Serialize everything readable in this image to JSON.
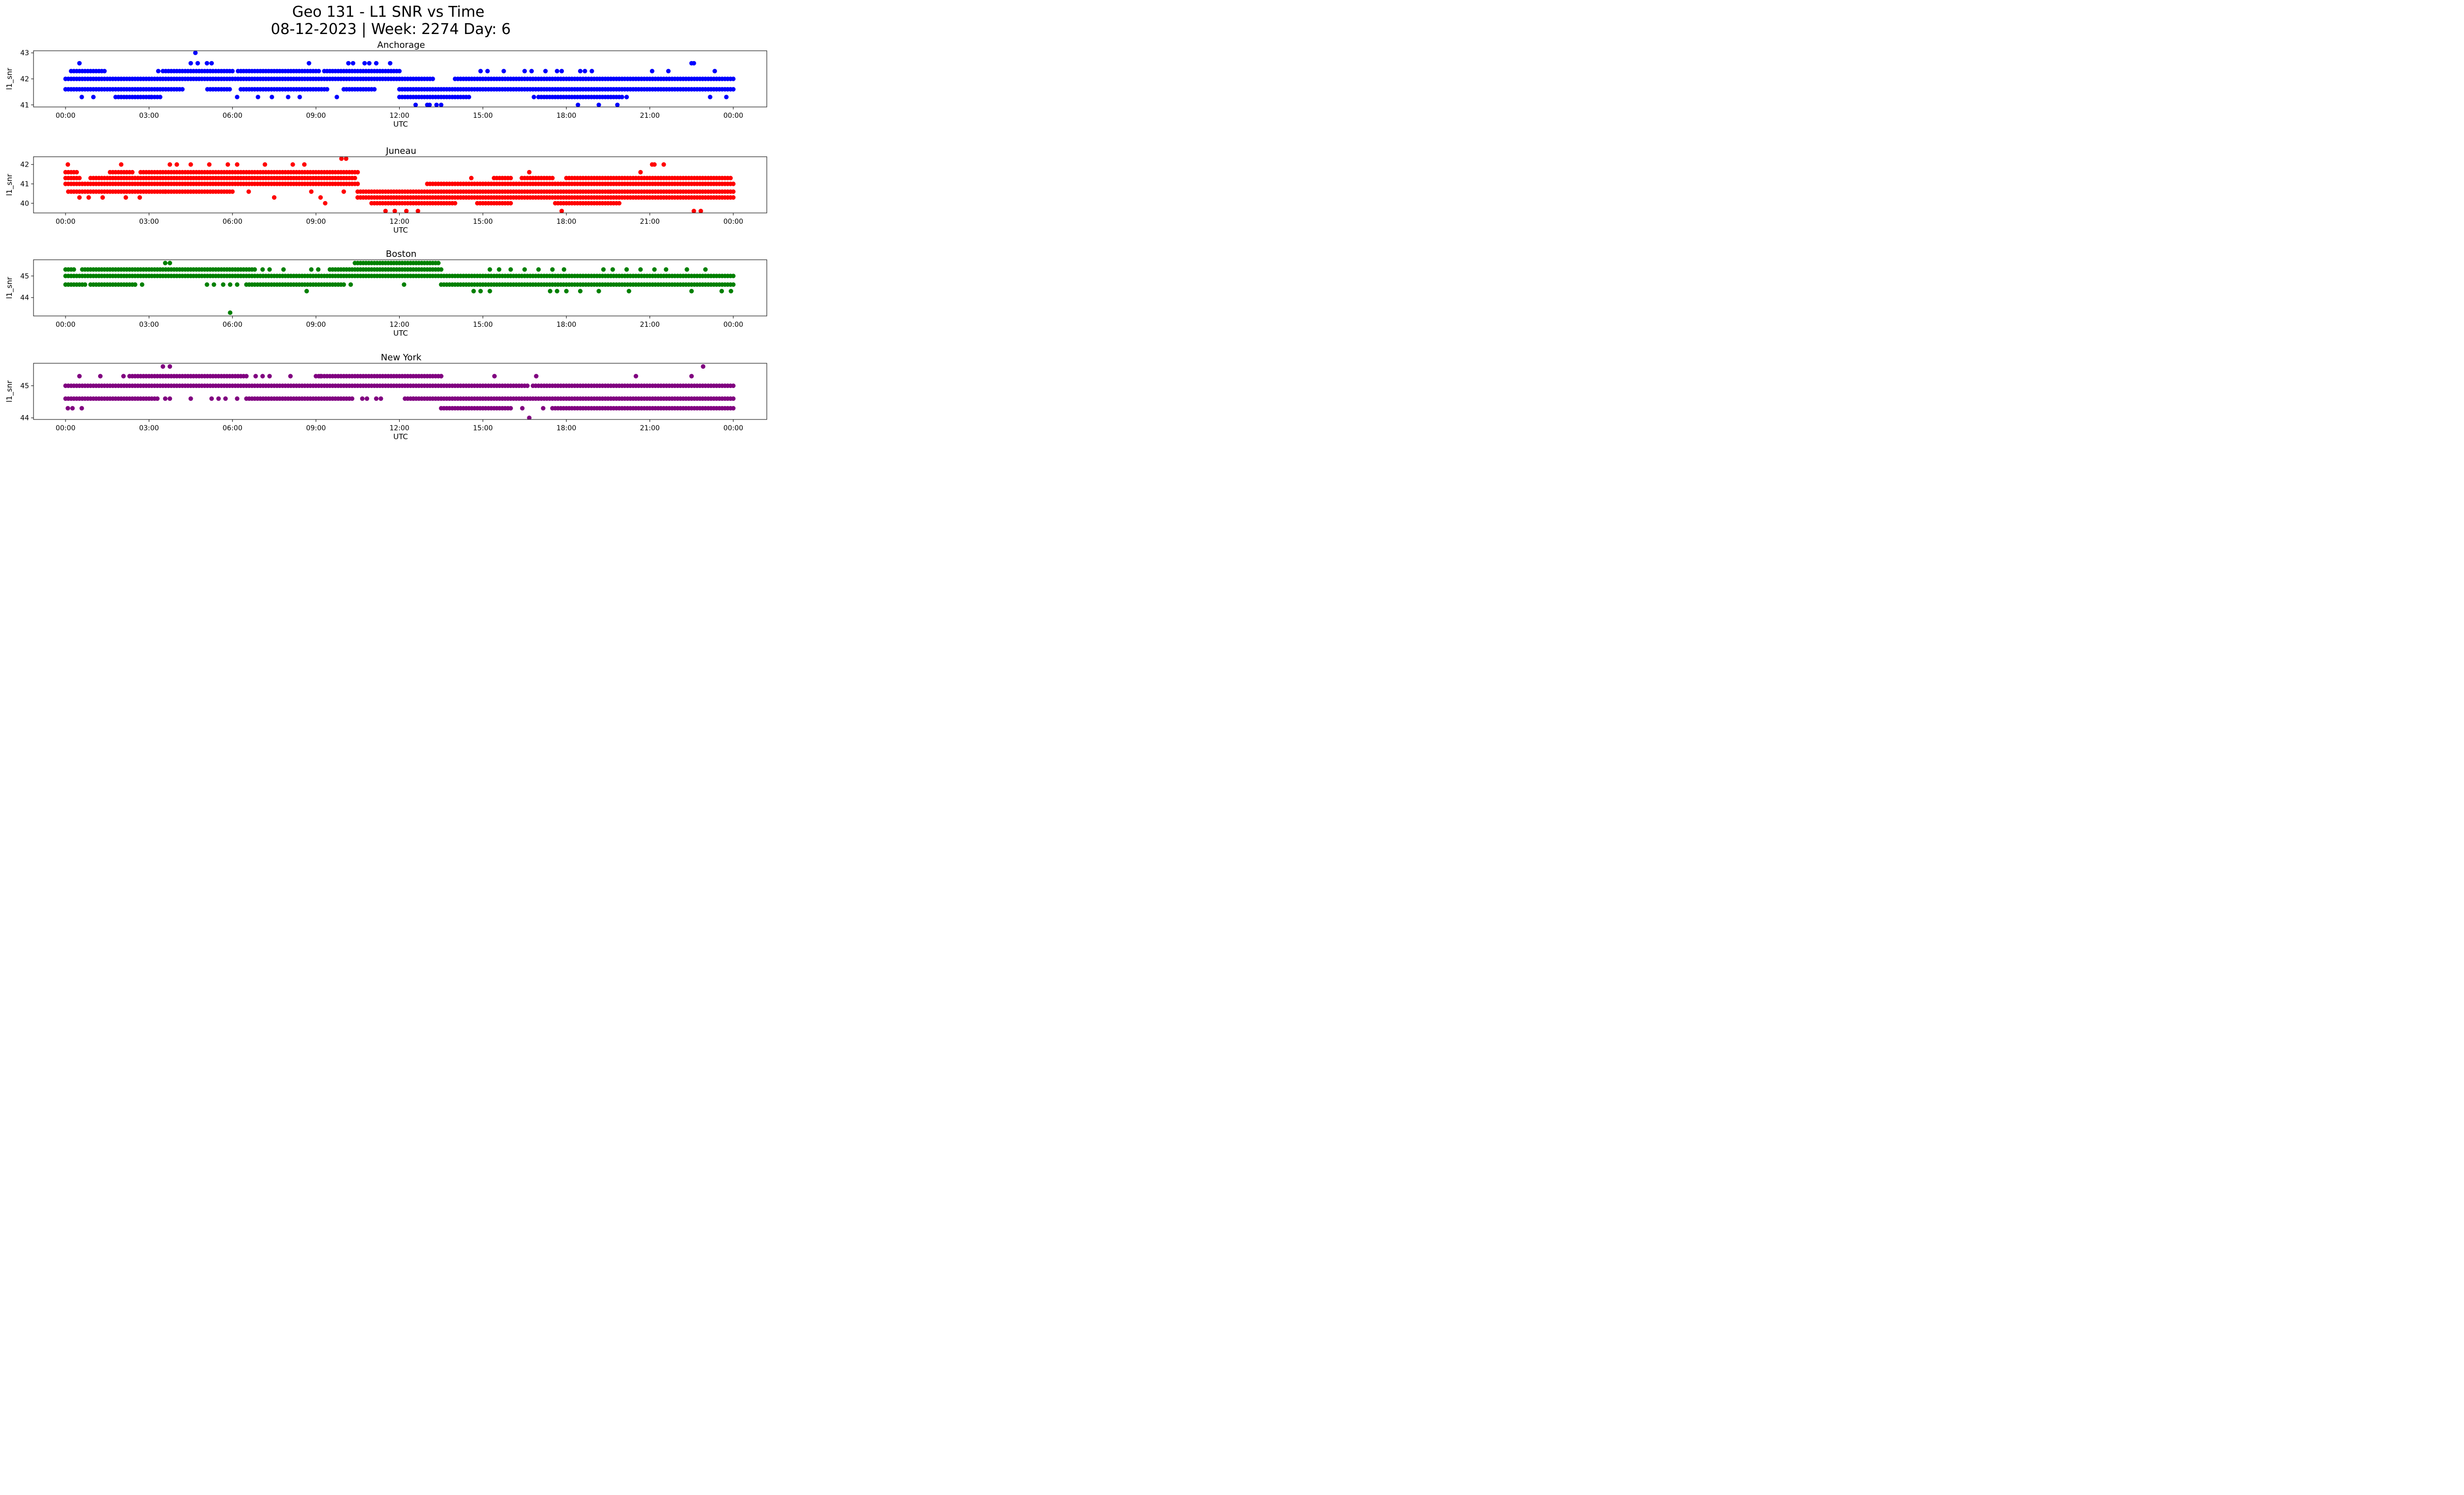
{
  "title_line1": "Geo 131 - L1 SNR vs Time",
  "title_line2": "08-12-2023 | Week: 2274 Day: 6",
  "chart_data": [
    {
      "type": "scatter",
      "title": "Anchorage",
      "xlabel": "UTC",
      "ylabel": "l1_snr",
      "color": "#0000ff",
      "xlim": [
        "00:00",
        "24:00"
      ],
      "x_ticks": [
        "00:00",
        "03:00",
        "06:00",
        "09:00",
        "12:00",
        "15:00",
        "18:00",
        "21:00",
        "00:00"
      ],
      "ylim": [
        40.92,
        43.08
      ],
      "y_ticks": [
        41,
        42,
        43
      ],
      "levels": [
        {
          "y": 42.0,
          "segments": [
            [
              0.0,
              12.0
            ],
            [
              12.1,
              13.2
            ],
            [
              14.0,
              24.0
            ]
          ]
        },
        {
          "y": 41.6,
          "segments": [
            [
              0.0,
              4.2
            ],
            [
              5.1,
              5.9
            ],
            [
              6.3,
              9.4
            ],
            [
              10.0,
              11.1
            ],
            [
              12.0,
              24.0
            ]
          ]
        },
        {
          "y": 42.3,
          "segments": [
            [
              0.2,
              1.4
            ],
            [
              3.5,
              6.0
            ],
            [
              6.2,
              9.1
            ],
            [
              9.3,
              12.0
            ]
          ]
        },
        {
          "y": 41.3,
          "segments": [
            [
              1.8,
              3.4
            ],
            [
              12.0,
              14.5
            ],
            [
              17.0,
              20.0
            ]
          ]
        }
      ],
      "points": [
        [
          "00:30",
          42.6
        ],
        [
          "00:35",
          41.3
        ],
        [
          "01:00",
          41.3
        ],
        [
          "03:05",
          41.3
        ],
        [
          "03:20",
          42.3
        ],
        [
          "04:40",
          43.0
        ],
        [
          "04:30",
          42.6
        ],
        [
          "04:45",
          42.6
        ],
        [
          "05:05",
          42.6
        ],
        [
          "05:15",
          42.6
        ],
        [
          "06:10",
          41.3
        ],
        [
          "06:55",
          41.3
        ],
        [
          "07:25",
          41.3
        ],
        [
          "08:00",
          41.3
        ],
        [
          "08:25",
          41.3
        ],
        [
          "08:45",
          42.6
        ],
        [
          "09:45",
          41.3
        ],
        [
          "10:10",
          42.6
        ],
        [
          "10:20",
          42.6
        ],
        [
          "10:45",
          42.6
        ],
        [
          "10:55",
          42.6
        ],
        [
          "11:10",
          42.6
        ],
        [
          "11:40",
          42.6
        ],
        [
          "12:35",
          41.0
        ],
        [
          "13:00",
          41.0
        ],
        [
          "13:05",
          41.0
        ],
        [
          "13:20",
          41.0
        ],
        [
          "13:30",
          41.0
        ],
        [
          "14:55",
          42.3
        ],
        [
          "15:10",
          42.3
        ],
        [
          "15:45",
          42.3
        ],
        [
          "16:30",
          42.3
        ],
        [
          "16:45",
          42.3
        ],
        [
          "16:50",
          41.3
        ],
        [
          "17:15",
          42.3
        ],
        [
          "17:40",
          42.3
        ],
        [
          "17:50",
          42.3
        ],
        [
          "18:30",
          42.3
        ],
        [
          "18:40",
          42.3
        ],
        [
          "18:25",
          41.0
        ],
        [
          "19:10",
          41.0
        ],
        [
          "19:50",
          41.0
        ],
        [
          "18:55",
          42.3
        ],
        [
          "20:10",
          41.3
        ],
        [
          "21:05",
          42.3
        ],
        [
          "21:40",
          42.3
        ],
        [
          "22:30",
          42.6
        ],
        [
          "22:35",
          42.6
        ],
        [
          "23:10",
          41.3
        ],
        [
          "23:20",
          42.3
        ],
        [
          "23:45",
          41.3
        ]
      ]
    },
    {
      "type": "scatter",
      "title": "Juneau",
      "xlabel": "UTC",
      "ylabel": "l1_snr",
      "color": "#ff0000",
      "xlim": [
        "00:00",
        "24:00"
      ],
      "x_ticks": [
        "00:00",
        "03:00",
        "06:00",
        "09:00",
        "12:00",
        "15:00",
        "18:00",
        "21:00",
        "00:00"
      ],
      "ylim": [
        39.5,
        42.4
      ],
      "y_ticks": [
        40,
        41,
        42
      ],
      "levels": [
        {
          "y": 41.0,
          "segments": [
            [
              0.0,
              10.5
            ],
            [
              13.0,
              24.0
            ]
          ]
        },
        {
          "y": 41.3,
          "segments": [
            [
              0.0,
              0.5
            ],
            [
              0.9,
              10.4
            ],
            [
              15.4,
              16.0
            ],
            [
              16.4,
              17.5
            ],
            [
              18.0,
              23.9
            ]
          ]
        },
        {
          "y": 41.6,
          "segments": [
            [
              0.0,
              0.4
            ],
            [
              1.6,
              2.4
            ],
            [
              2.7,
              10.5
            ]
          ]
        },
        {
          "y": 40.6,
          "segments": [
            [
              0.1,
              6.0
            ],
            [
              10.5,
              24.0
            ]
          ]
        },
        {
          "y": 40.3,
          "segments": [
            [
              10.5,
              24.0
            ]
          ]
        },
        {
          "y": 40.0,
          "segments": [
            [
              11.0,
              14.0
            ],
            [
              14.8,
              16.0
            ],
            [
              17.6,
              19.9
            ]
          ]
        }
      ],
      "points": [
        [
          "00:05",
          42.0
        ],
        [
          "00:30",
          40.3
        ],
        [
          "00:50",
          40.3
        ],
        [
          "01:20",
          40.3
        ],
        [
          "02:00",
          42.0
        ],
        [
          "02:10",
          40.3
        ],
        [
          "02:40",
          40.3
        ],
        [
          "03:35",
          40.6
        ],
        [
          "03:45",
          42.0
        ],
        [
          "04:00",
          42.0
        ],
        [
          "04:30",
          42.0
        ],
        [
          "05:10",
          42.0
        ],
        [
          "05:50",
          42.0
        ],
        [
          "06:10",
          42.0
        ],
        [
          "06:35",
          40.6
        ],
        [
          "07:10",
          42.0
        ],
        [
          "07:30",
          40.3
        ],
        [
          "08:10",
          42.0
        ],
        [
          "08:35",
          42.0
        ],
        [
          "08:50",
          40.6
        ],
        [
          "09:10",
          40.3
        ],
        [
          "09:20",
          40.0
        ],
        [
          "09:55",
          42.3
        ],
        [
          "10:05",
          42.3
        ],
        [
          "10:00",
          40.6
        ],
        [
          "11:30",
          39.6
        ],
        [
          "11:50",
          39.6
        ],
        [
          "12:15",
          39.6
        ],
        [
          "12:40",
          39.6
        ],
        [
          "14:35",
          41.3
        ],
        [
          "16:40",
          41.6
        ],
        [
          "17:50",
          39.6
        ],
        [
          "19:35",
          40.6
        ],
        [
          "20:40",
          41.6
        ],
        [
          "21:05",
          42.0
        ],
        [
          "21:10",
          42.0
        ],
        [
          "21:30",
          42.0
        ],
        [
          "22:35",
          39.6
        ],
        [
          "22:50",
          39.6
        ]
      ]
    },
    {
      "type": "scatter",
      "title": "Boston",
      "xlabel": "UTC",
      "ylabel": "l1_snr",
      "color": "#008000",
      "xlim": [
        "00:00",
        "24:00"
      ],
      "x_ticks": [
        "00:00",
        "03:00",
        "06:00",
        "09:00",
        "12:00",
        "15:00",
        "18:00",
        "21:00",
        "00:00"
      ],
      "ylim": [
        43.15,
        45.75
      ],
      "y_ticks": [
        44,
        45
      ],
      "levels": [
        {
          "y": 45.0,
          "segments": [
            [
              0.0,
              24.0
            ]
          ]
        },
        {
          "y": 45.3,
          "segments": [
            [
              0.0,
              0.3
            ],
            [
              0.6,
              1.5
            ],
            [
              1.6,
              2.6
            ],
            [
              2.7,
              6.8
            ],
            [
              9.5,
              13.5
            ]
          ]
        },
        {
          "y": 44.6,
          "segments": [
            [
              0.0,
              0.7
            ],
            [
              0.9,
              2.5
            ],
            [
              6.6,
              10.0
            ],
            [
              13.5,
              24.0
            ]
          ]
        },
        {
          "y": 45.6,
          "segments": [
            [
              10.4,
              12.2
            ],
            [
              12.3,
              13.4
            ]
          ]
        }
      ],
      "points": [
        [
          "02:30",
          44.6
        ],
        [
          "02:45",
          44.6
        ],
        [
          "03:35",
          45.6
        ],
        [
          "03:45",
          45.6
        ],
        [
          "05:05",
          44.6
        ],
        [
          "05:20",
          44.6
        ],
        [
          "05:40",
          44.6
        ],
        [
          "05:55",
          44.6
        ],
        [
          "05:55",
          43.3
        ],
        [
          "06:10",
          44.6
        ],
        [
          "06:30",
          44.6
        ],
        [
          "07:05",
          45.3
        ],
        [
          "07:20",
          45.3
        ],
        [
          "07:50",
          45.3
        ],
        [
          "08:40",
          44.3
        ],
        [
          "08:50",
          45.3
        ],
        [
          "09:05",
          45.3
        ],
        [
          "10:15",
          44.6
        ],
        [
          "12:10",
          44.6
        ],
        [
          "14:40",
          44.3
        ],
        [
          "14:55",
          44.3
        ],
        [
          "15:15",
          45.3
        ],
        [
          "15:15",
          44.3
        ],
        [
          "15:35",
          45.3
        ],
        [
          "16:00",
          45.3
        ],
        [
          "16:30",
          45.3
        ],
        [
          "17:00",
          45.3
        ],
        [
          "17:25",
          44.3
        ],
        [
          "17:30",
          45.3
        ],
        [
          "17:55",
          45.3
        ],
        [
          "17:40",
          44.3
        ],
        [
          "18:00",
          44.3
        ],
        [
          "18:30",
          44.3
        ],
        [
          "19:10",
          44.3
        ],
        [
          "19:20",
          45.3
        ],
        [
          "19:40",
          45.3
        ],
        [
          "20:10",
          45.3
        ],
        [
          "20:15",
          44.3
        ],
        [
          "20:40",
          45.3
        ],
        [
          "21:10",
          45.3
        ],
        [
          "21:35",
          45.3
        ],
        [
          "22:20",
          45.3
        ],
        [
          "22:30",
          44.3
        ],
        [
          "23:00",
          45.3
        ],
        [
          "23:35",
          44.3
        ],
        [
          "23:55",
          44.3
        ]
      ]
    },
    {
      "type": "scatter",
      "title": "New York",
      "xlabel": "UTC",
      "ylabel": "l1_snr",
      "color": "#800080",
      "xlim": [
        "00:00",
        "24:00"
      ],
      "x_ticks": [
        "00:00",
        "03:00",
        "06:00",
        "09:00",
        "12:00",
        "15:00",
        "18:00",
        "21:00",
        "00:00"
      ],
      "ylim": [
        43.95,
        45.7
      ],
      "y_ticks": [
        44,
        45
      ],
      "levels": [
        {
          "y": 45.0,
          "segments": [
            [
              0.0,
              14.0
            ],
            [
              14.1,
              16.6
            ],
            [
              16.8,
              24.0
            ]
          ]
        },
        {
          "y": 44.6,
          "segments": [
            [
              0.0,
              3.3
            ],
            [
              6.5,
              10.3
            ],
            [
              12.2,
              24.0
            ]
          ]
        },
        {
          "y": 45.3,
          "segments": [
            [
              2.3,
              6.5
            ],
            [
              9.0,
              13.5
            ]
          ]
        },
        {
          "y": 44.3,
          "segments": [
            [
              13.5,
              16.0
            ],
            [
              17.5,
              24.0
            ]
          ]
        }
      ],
      "points": [
        [
          "00:05",
          44.3
        ],
        [
          "00:15",
          44.3
        ],
        [
          "00:30",
          45.3
        ],
        [
          "00:35",
          44.3
        ],
        [
          "01:15",
          45.3
        ],
        [
          "02:05",
          45.3
        ],
        [
          "03:30",
          45.6
        ],
        [
          "03:45",
          45.6
        ],
        [
          "03:35",
          44.6
        ],
        [
          "03:45",
          44.6
        ],
        [
          "04:30",
          44.6
        ],
        [
          "05:15",
          44.6
        ],
        [
          "05:30",
          44.6
        ],
        [
          "05:45",
          44.6
        ],
        [
          "06:10",
          44.6
        ],
        [
          "06:50",
          45.3
        ],
        [
          "07:05",
          45.3
        ],
        [
          "07:20",
          45.3
        ],
        [
          "08:05",
          45.3
        ],
        [
          "09:10",
          45.3
        ],
        [
          "10:40",
          44.6
        ],
        [
          "10:50",
          44.6
        ],
        [
          "11:10",
          44.6
        ],
        [
          "11:20",
          44.6
        ],
        [
          "12:30",
          44.6
        ],
        [
          "13:30",
          45.3
        ],
        [
          "15:25",
          45.3
        ],
        [
          "16:25",
          44.3
        ],
        [
          "16:40",
          44.0
        ],
        [
          "16:55",
          45.3
        ],
        [
          "20:30",
          45.3
        ],
        [
          "22:30",
          45.3
        ],
        [
          "22:55",
          45.6
        ],
        [
          "17:10",
          44.3
        ]
      ]
    }
  ]
}
